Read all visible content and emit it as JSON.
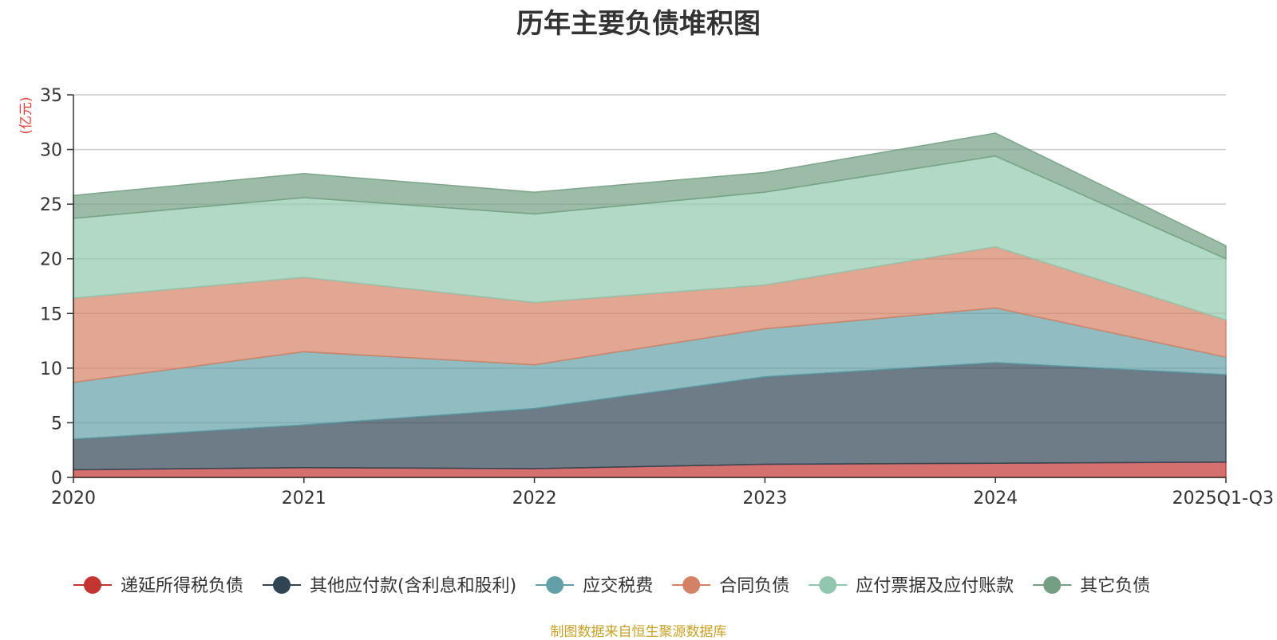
{
  "title": "历年主要负债堆积图",
  "source_note": "制图数据来自恒生聚源数据库",
  "chart_data": {
    "type": "area",
    "stacked": true,
    "title": "历年主要负债堆积图",
    "ylabel": "(亿元)",
    "xlabel": "",
    "categories": [
      "2020",
      "2021",
      "2022",
      "2023",
      "2024",
      "2025Q1-Q3"
    ],
    "ylim": [
      0,
      35
    ],
    "yticks": [
      0,
      5,
      10,
      15,
      20,
      25,
      30,
      35
    ],
    "grid": true,
    "legend_position": "bottom",
    "series": [
      {
        "name": "递延所得税负债",
        "color": "#c23531",
        "values": [
          0.7,
          0.9,
          0.8,
          1.2,
          1.3,
          1.4
        ]
      },
      {
        "name": "其他应付款(含利息和股利)",
        "color": "#2f4554",
        "values": [
          2.8,
          3.9,
          5.5,
          8.0,
          9.2,
          8.0
        ]
      },
      {
        "name": "应交税费",
        "color": "#61a0a8",
        "values": [
          5.2,
          6.7,
          4.0,
          4.4,
          5.0,
          1.6
        ]
      },
      {
        "name": "合同负债",
        "color": "#d48265",
        "values": [
          7.7,
          6.8,
          5.7,
          4.0,
          5.6,
          3.4
        ]
      },
      {
        "name": "应付票据及应付账款",
        "color": "#91c7ae",
        "values": [
          7.3,
          7.3,
          8.1,
          8.5,
          8.3,
          5.6
        ]
      },
      {
        "name": "其它负债",
        "color": "#749f83",
        "values": [
          2.1,
          2.2,
          2.0,
          1.8,
          2.1,
          1.2
        ]
      }
    ]
  }
}
